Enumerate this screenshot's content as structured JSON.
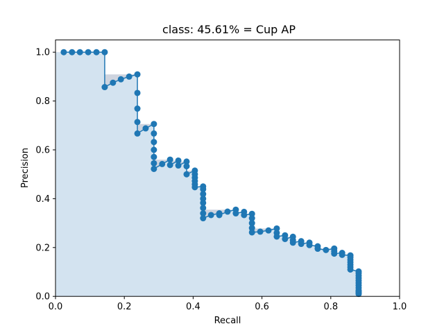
{
  "chart_data": {
    "type": "line",
    "title": "class: 45.61% = Cup AP",
    "xlabel": "Recall",
    "ylabel": "Precision",
    "xlim": [
      0,
      1
    ],
    "ylim": [
      0,
      1.05
    ],
    "x_ticks": [
      0,
      0.2,
      0.4,
      0.6,
      0.8,
      1
    ],
    "x_tick_labels": [
      "0.0",
      "0.2",
      "0.4",
      "0.6",
      "0.8",
      "1.0"
    ],
    "y_ticks": [
      0,
      0.2,
      0.4,
      0.6,
      0.8,
      1
    ],
    "y_tick_labels": [
      "0.0",
      "0.2",
      "0.4",
      "0.6",
      "0.8",
      "1.0"
    ],
    "grid": false,
    "colors": {
      "line": "#1f77b4",
      "fill": "#d3e3f0",
      "interp_fill": "#ced4df"
    },
    "series": [
      {
        "x": [
          0.024,
          0.048,
          0.071,
          0.095,
          0.119,
          0.143,
          0.143,
          0.167,
          0.19,
          0.214,
          0.238,
          0.238,
          0.238,
          0.238,
          0.238,
          0.262,
          0.286,
          0.286,
          0.286,
          0.286,
          0.286,
          0.286,
          0.286,
          0.31,
          0.333,
          0.333,
          0.357,
          0.357,
          0.381,
          0.381,
          0.381,
          0.405,
          0.405,
          0.405,
          0.405,
          0.405,
          0.405,
          0.429,
          0.429,
          0.429,
          0.429,
          0.429,
          0.429,
          0.429,
          0.429,
          0.452,
          0.476,
          0.476,
          0.5,
          0.524,
          0.524,
          0.548,
          0.548,
          0.571,
          0.571,
          0.571,
          0.571,
          0.571,
          0.595,
          0.619,
          0.643,
          0.643,
          0.643,
          0.667,
          0.667,
          0.69,
          0.69,
          0.69,
          0.714,
          0.714,
          0.738,
          0.738,
          0.762,
          0.762,
          0.786,
          0.81,
          0.81,
          0.81,
          0.833,
          0.833,
          0.857,
          0.857,
          0.857,
          0.857,
          0.857,
          0.857,
          0.857,
          0.881,
          0.881,
          0.881,
          0.881,
          0.881,
          0.881,
          0.881,
          0.881,
          0.881,
          0.881,
          0.881,
          0.881
        ],
        "y": [
          1.0,
          1.0,
          1.0,
          1.0,
          1.0,
          1.0,
          0.857,
          0.875,
          0.889,
          0.9,
          0.909,
          0.833,
          0.769,
          0.714,
          0.667,
          0.688,
          0.706,
          0.667,
          0.632,
          0.6,
          0.571,
          0.545,
          0.522,
          0.542,
          0.56,
          0.538,
          0.556,
          0.536,
          0.552,
          0.533,
          0.5,
          0.515,
          0.5,
          0.486,
          0.472,
          0.459,
          0.447,
          0.45,
          0.439,
          0.419,
          0.4,
          0.383,
          0.362,
          0.34,
          0.32,
          0.333,
          0.34,
          0.333,
          0.347,
          0.355,
          0.34,
          0.346,
          0.333,
          0.338,
          0.32,
          0.3,
          0.28,
          0.262,
          0.265,
          0.27,
          0.278,
          0.26,
          0.245,
          0.25,
          0.235,
          0.244,
          0.23,
          0.22,
          0.226,
          0.215,
          0.22,
          0.21,
          0.205,
          0.195,
          0.19,
          0.196,
          0.185,
          0.175,
          0.178,
          0.17,
          0.168,
          0.16,
          0.15,
          0.14,
          0.13,
          0.12,
          0.11,
          0.102,
          0.095,
          0.085,
          0.075,
          0.065,
          0.055,
          0.045,
          0.035,
          0.025,
          0.02,
          0.015,
          0.01
        ]
      }
    ]
  }
}
